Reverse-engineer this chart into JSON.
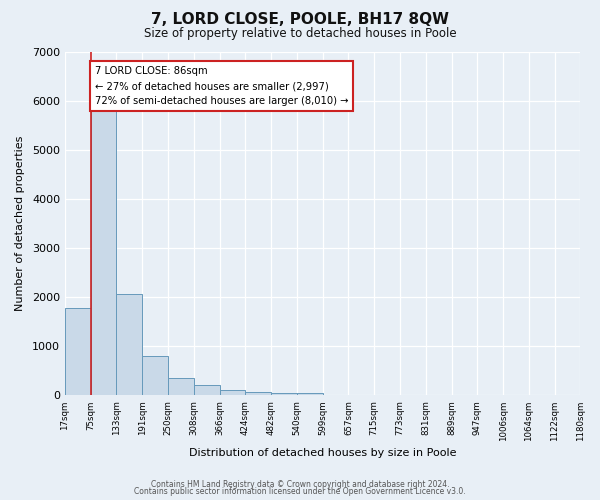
{
  "title": "7, LORD CLOSE, POOLE, BH17 8QW",
  "subtitle": "Size of property relative to detached houses in Poole",
  "xlabel": "Distribution of detached houses by size in Poole",
  "ylabel": "Number of detached properties",
  "bar_color": "#c9d9e8",
  "bar_edge_color": "#6699bb",
  "bar_values": [
    1780,
    5780,
    2060,
    800,
    360,
    220,
    110,
    70,
    50,
    50,
    0,
    0,
    0,
    0,
    0,
    0,
    0,
    0,
    0,
    0
  ],
  "bin_labels": [
    "17sqm",
    "75sqm",
    "133sqm",
    "191sqm",
    "250sqm",
    "308sqm",
    "366sqm",
    "424sqm",
    "482sqm",
    "540sqm",
    "599sqm",
    "657sqm",
    "715sqm",
    "773sqm",
    "831sqm",
    "889sqm",
    "947sqm",
    "1006sqm",
    "1064sqm",
    "1122sqm",
    "1180sqm"
  ],
  "ylim": [
    0,
    7000
  ],
  "yticks": [
    0,
    1000,
    2000,
    3000,
    4000,
    5000,
    6000,
    7000
  ],
  "red_line_x": 1,
  "annotation_title": "7 LORD CLOSE: 86sqm",
  "annotation_line1": "← 27% of detached houses are smaller (2,997)",
  "annotation_line2": "72% of semi-detached houses are larger (8,010) →",
  "footer1": "Contains HM Land Registry data © Crown copyright and database right 2024.",
  "footer2": "Contains public sector information licensed under the Open Government Licence v3.0.",
  "bg_color": "#e8eff6",
  "plot_bg_color": "#e8eff6"
}
